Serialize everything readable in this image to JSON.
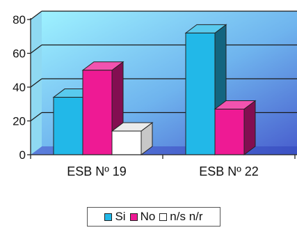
{
  "chart_data": {
    "type": "bar",
    "categories": [
      "ESB Nº 19",
      "ESB Nº 22"
    ],
    "series": [
      {
        "name": "Si",
        "values": [
          34,
          72
        ],
        "color": "#22b8e8"
      },
      {
        "name": "No",
        "values": [
          50,
          27
        ],
        "color": "#ee1a94"
      },
      {
        "name": "n/s n/r",
        "values": [
          14,
          null
        ],
        "color": "#ffffff"
      }
    ],
    "ylim": [
      0,
      80
    ],
    "y_ticks": [
      "0",
      "20",
      "40",
      "60",
      "80"
    ],
    "grid": true,
    "legend_position": "bottom",
    "title": "",
    "xlabel": "",
    "ylabel": ""
  }
}
